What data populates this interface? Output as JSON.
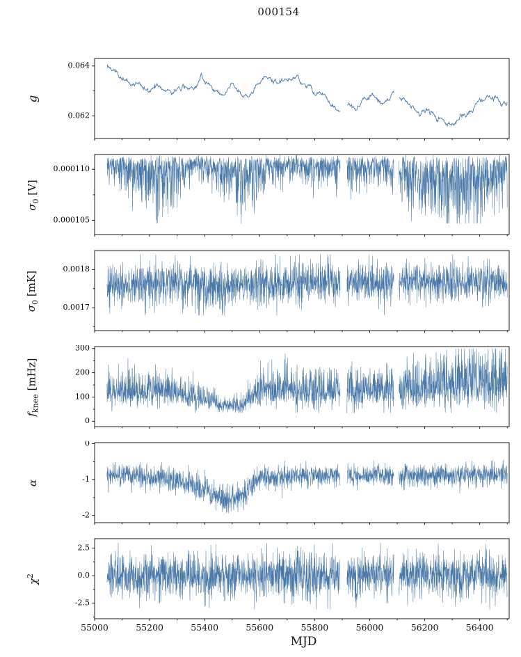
{
  "figure": {
    "background": "#ffffff",
    "line_color": "#4878a8",
    "axis_color": "#000000"
  },
  "chart_data": {
    "type": "line",
    "title": "000154",
    "xlabel": "MJD",
    "xlim": [
      55000,
      56507
    ],
    "x_data_range": [
      55045,
      56500
    ],
    "xticks": [
      55000,
      55200,
      55400,
      55600,
      55800,
      56000,
      56200,
      56400
    ],
    "x_tick_labels": [
      "55000",
      "55200",
      "55400",
      "55600",
      "55800",
      "56000",
      "56200",
      "56400"
    ],
    "x_minor_step": 100,
    "gaps": [
      [
        55893,
        55917
      ],
      [
        56088,
        56106
      ]
    ],
    "legend": "none",
    "grid": false,
    "panels": [
      {
        "name": "g",
        "ylabel_html": "<i>g</i>",
        "ylabel_text": "g",
        "style": "smooth_line",
        "ylim": [
          0.0611,
          0.0643
        ],
        "yticks": [
          {
            "v": 0.062,
            "label": "0.062"
          },
          {
            "v": 0.064,
            "label": "0.064"
          }
        ],
        "noise_sigma": 4e-05,
        "baseline_points": [
          [
            55050,
            0.064
          ],
          [
            55075,
            0.0637
          ],
          [
            55100,
            0.0635
          ],
          [
            55130,
            0.0633
          ],
          [
            55160,
            0.0632
          ],
          [
            55200,
            0.063
          ],
          [
            55240,
            0.0632
          ],
          [
            55280,
            0.063
          ],
          [
            55320,
            0.0631
          ],
          [
            55360,
            0.0631
          ],
          [
            55390,
            0.0637
          ],
          [
            55410,
            0.0634
          ],
          [
            55440,
            0.063
          ],
          [
            55470,
            0.0629
          ],
          [
            55500,
            0.0633
          ],
          [
            55530,
            0.0629
          ],
          [
            55560,
            0.0628
          ],
          [
            55590,
            0.0633
          ],
          [
            55620,
            0.0635
          ],
          [
            55660,
            0.0634
          ],
          [
            55700,
            0.0635
          ],
          [
            55740,
            0.0636
          ],
          [
            55770,
            0.0632
          ],
          [
            55800,
            0.063
          ],
          [
            55830,
            0.0629
          ],
          [
            55860,
            0.0625
          ],
          [
            55890,
            0.0622
          ],
          [
            55920,
            0.0624
          ],
          [
            55950,
            0.0622
          ],
          [
            55980,
            0.0626
          ],
          [
            56010,
            0.0628
          ],
          [
            56040,
            0.0625
          ],
          [
            56070,
            0.0627
          ],
          [
            56100,
            0.0629
          ],
          [
            56130,
            0.0626
          ],
          [
            56160,
            0.0623
          ],
          [
            56190,
            0.0621
          ],
          [
            56220,
            0.0622
          ],
          [
            56250,
            0.062
          ],
          [
            56280,
            0.0618
          ],
          [
            56310,
            0.0617
          ],
          [
            56340,
            0.062
          ],
          [
            56370,
            0.0622
          ],
          [
            56400,
            0.0626
          ],
          [
            56430,
            0.0627
          ],
          [
            56460,
            0.0627
          ],
          [
            56505,
            0.0626
          ]
        ]
      },
      {
        "name": "sigma0_V",
        "ylabel_html": "<i>&sigma;</i><sub>0</sub> [V]",
        "ylabel_text": "sigma_0 [V]",
        "style": "spikes_down",
        "ylim": [
          0.0001036,
          0.00011145
        ],
        "yticks": [
          {
            "v": 0.000105,
            "label": "0.000105"
          },
          {
            "v": 0.00011,
            "label": "0.000110"
          }
        ],
        "base_level": 0.0001112,
        "clip_low": 0.0001047,
        "depth_points": [
          [
            55050,
            1.5e-06
          ],
          [
            55120,
            3e-06
          ],
          [
            55180,
            3.5e-06
          ],
          [
            55240,
            4.5e-06
          ],
          [
            55300,
            3e-06
          ],
          [
            55360,
            1.5e-06
          ],
          [
            55420,
            2e-06
          ],
          [
            55480,
            3e-06
          ],
          [
            55540,
            5e-06
          ],
          [
            55600,
            3e-06
          ],
          [
            55660,
            2e-06
          ],
          [
            55720,
            2e-06
          ],
          [
            55780,
            2.5e-06
          ],
          [
            55840,
            2e-06
          ],
          [
            55900,
            2.5e-06
          ],
          [
            55960,
            2.5e-06
          ],
          [
            56020,
            2e-06
          ],
          [
            56080,
            2.5e-06
          ],
          [
            56140,
            3.5e-06
          ],
          [
            56200,
            4.5e-06
          ],
          [
            56260,
            5.5e-06
          ],
          [
            56320,
            6e-06
          ],
          [
            56380,
            5e-06
          ],
          [
            56440,
            3.5e-06
          ],
          [
            56505,
            3e-06
          ]
        ]
      },
      {
        "name": "sigma0_mK",
        "ylabel_html": "<i>&sigma;</i><sub>0</sub> [mK]",
        "ylabel_text": "sigma_0 [mK]",
        "style": "band",
        "ylim": [
          0.00164,
          0.00185
        ],
        "yticks": [
          {
            "v": 0.0017,
            "label": "0.0017"
          },
          {
            "v": 0.0018,
            "label": "0.0018"
          }
        ],
        "clip": [
          0.00168,
          0.00184
        ],
        "mean_points": [
          [
            55050,
            0.001755
          ],
          [
            55200,
            0.00176
          ],
          [
            55350,
            0.001765
          ],
          [
            55450,
            0.001753
          ],
          [
            55550,
            0.00176
          ],
          [
            55700,
            0.001765
          ],
          [
            55850,
            0.00177
          ],
          [
            56000,
            0.001765
          ],
          [
            56150,
            0.00177
          ],
          [
            56300,
            0.001765
          ],
          [
            56505,
            0.001765
          ]
        ],
        "spread_points": [
          [
            55050,
            2.6e-05
          ],
          [
            55450,
            3e-05
          ],
          [
            56000,
            2.6e-05
          ],
          [
            56505,
            2.6e-05
          ]
        ]
      },
      {
        "name": "f_knee",
        "ylabel_html": "<i>f</i><sub>knee</sub> [mHz]",
        "ylabel_text": "f_knee [mHz]",
        "style": "band_skew",
        "ylim": [
          -22,
          308
        ],
        "yticks": [
          {
            "v": 0,
            "label": "0"
          },
          {
            "v": 100,
            "label": "100"
          },
          {
            "v": 200,
            "label": "200"
          },
          {
            "v": 300,
            "label": "300"
          }
        ],
        "clip": [
          34,
          299
        ],
        "mean_points": [
          [
            55050,
            120
          ],
          [
            55150,
            125
          ],
          [
            55250,
            120
          ],
          [
            55330,
            110
          ],
          [
            55400,
            90
          ],
          [
            55450,
            70
          ],
          [
            55500,
            60
          ],
          [
            55550,
            75
          ],
          [
            55600,
            120
          ],
          [
            55700,
            125
          ],
          [
            55800,
            120
          ],
          [
            55900,
            120
          ],
          [
            56000,
            125
          ],
          [
            56100,
            130
          ],
          [
            56200,
            140
          ],
          [
            56300,
            150
          ],
          [
            56400,
            155
          ],
          [
            56505,
            150
          ]
        ],
        "spread_points": [
          [
            55050,
            52
          ],
          [
            55350,
            40
          ],
          [
            55450,
            25
          ],
          [
            55500,
            20
          ],
          [
            55560,
            35
          ],
          [
            55620,
            55
          ],
          [
            55800,
            50
          ],
          [
            56000,
            52
          ],
          [
            56100,
            55
          ],
          [
            56200,
            65
          ],
          [
            56300,
            78
          ],
          [
            56400,
            82
          ],
          [
            56505,
            75
          ]
        ]
      },
      {
        "name": "alpha",
        "ylabel_html": "<i>&alpha;</i>",
        "ylabel_text": "alpha",
        "style": "band",
        "ylim": [
          -2.2,
          0.03
        ],
        "yticks": [
          {
            "v": -2,
            "label": "-2"
          },
          {
            "v": -1,
            "label": "-1"
          },
          {
            "v": 0,
            "label": "0"
          }
        ],
        "clip": [
          -1.97,
          -0.45
        ],
        "mean_points": [
          [
            55050,
            -0.9
          ],
          [
            55150,
            -0.92
          ],
          [
            55250,
            -0.95
          ],
          [
            55320,
            -1.05
          ],
          [
            55370,
            -1.15
          ],
          [
            55410,
            -1.3
          ],
          [
            55450,
            -1.5
          ],
          [
            55490,
            -1.55
          ],
          [
            55530,
            -1.45
          ],
          [
            55570,
            -1.15
          ],
          [
            55610,
            -0.95
          ],
          [
            55700,
            -0.9
          ],
          [
            55850,
            -0.88
          ],
          [
            56000,
            -0.9
          ],
          [
            56150,
            -0.88
          ],
          [
            56300,
            -0.87
          ],
          [
            56505,
            -0.85
          ]
        ],
        "spread_points": [
          [
            55050,
            0.15
          ],
          [
            55350,
            0.18
          ],
          [
            55480,
            0.22
          ],
          [
            55600,
            0.16
          ],
          [
            56505,
            0.15
          ]
        ]
      },
      {
        "name": "chi2",
        "ylabel_html": "<i>&chi;</i><sup>2</sup>",
        "ylabel_text": "chi^2",
        "style": "band",
        "ylim": [
          -3.9,
          3.35
        ],
        "yticks": [
          {
            "v": -2.5,
            "label": "-2.5"
          },
          {
            "v": 0.0,
            "label": "0.0"
          },
          {
            "v": 2.5,
            "label": "2.5"
          }
        ],
        "clip": [
          -3.05,
          2.95
        ],
        "mean_points": [
          [
            55050,
            0.0
          ],
          [
            56505,
            0.0
          ]
        ],
        "spread_points": [
          [
            55050,
            1.05
          ],
          [
            56505,
            1.05
          ]
        ]
      }
    ]
  }
}
